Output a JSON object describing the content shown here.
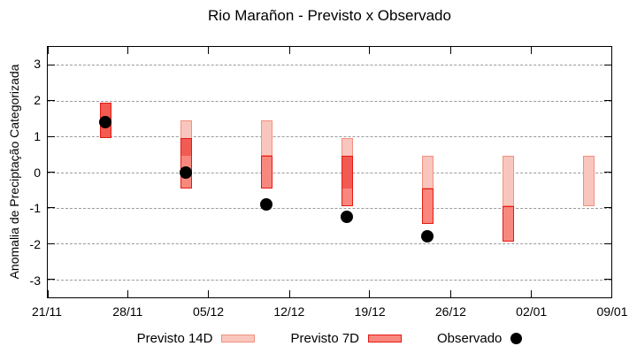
{
  "title": "Rio Marañon - Previsto x Observado",
  "y_axis": {
    "label": "Anomalia de Preciptação Categorizada",
    "ticks": [
      "3",
      "2",
      "1",
      "0",
      "-1",
      "-2",
      "-3"
    ]
  },
  "x_axis": {
    "ticks": [
      "21/11",
      "28/11",
      "05/12",
      "12/12",
      "19/12",
      "26/12",
      "02/01",
      "09/01"
    ]
  },
  "legend": {
    "previsto14_label": "Previsto 14D",
    "previsto7_label": "Previsto 7D",
    "observado_label": "Observado"
  },
  "colors": {
    "previsto14_fill": "#f9c6bd",
    "previsto14_border": "#f2907f",
    "previsto7_fill": "#f8887e",
    "previsto7_border": "#e51a12",
    "overlap_fill": "#f15b52",
    "observado": "#000000",
    "grid": "#9a9a9a",
    "axis": "#000000"
  },
  "chart_data": {
    "type": "bar",
    "subtype": "range-bars-with-scatter-overlay",
    "title": "Rio Marañon - Previsto x Observado",
    "xlabel": "",
    "ylabel": "Anomalia de Preciptação Categorizada",
    "ylim": [
      -3.5,
      3.5
    ],
    "yticks": [
      3,
      2,
      1,
      0,
      -1,
      -2,
      -3
    ],
    "x_tick_labels": [
      "21/11",
      "28/11",
      "05/12",
      "12/12",
      "19/12",
      "26/12",
      "02/01",
      "09/01"
    ],
    "x_tick_days": [
      0,
      7,
      14,
      21,
      28,
      35,
      42,
      49
    ],
    "x_range_days": 49,
    "grid": "horizontal-dashed",
    "legend_position": "bottom-center",
    "series_names": [
      "Previsto 14D",
      "Previsto 7D",
      "Observado"
    ],
    "groups": [
      {
        "date": "26/11",
        "day": 5,
        "previsto_14d": [
          0.95,
          1.95
        ],
        "previsto_7d": [
          0.95,
          1.95
        ],
        "observado": 1.4
      },
      {
        "date": "03/12",
        "day": 12,
        "previsto_14d": [
          0.45,
          1.45
        ],
        "previsto_7d": [
          -0.45,
          0.95
        ],
        "observado": 0.0
      },
      {
        "date": "10/12",
        "day": 19,
        "previsto_14d": [
          0.45,
          1.45
        ],
        "previsto_7d": [
          -0.45,
          0.45
        ],
        "observado": -0.9
      },
      {
        "date": "17/12",
        "day": 26,
        "previsto_14d": [
          -0.45,
          0.95
        ],
        "previsto_7d": [
          -0.95,
          0.45
        ],
        "observado": -1.25
      },
      {
        "date": "24/12",
        "day": 33,
        "previsto_14d": [
          -0.45,
          0.45
        ],
        "previsto_7d": [
          -1.45,
          -0.45
        ],
        "observado": -1.8
      },
      {
        "date": "31/12",
        "day": 40,
        "previsto_14d": [
          -0.95,
          0.45
        ],
        "previsto_7d": [
          -1.95,
          -0.95
        ],
        "observado": null
      },
      {
        "date": "07/01",
        "day": 47,
        "previsto_14d": [
          -0.95,
          0.45
        ],
        "previsto_7d": null,
        "observado": null
      }
    ]
  }
}
